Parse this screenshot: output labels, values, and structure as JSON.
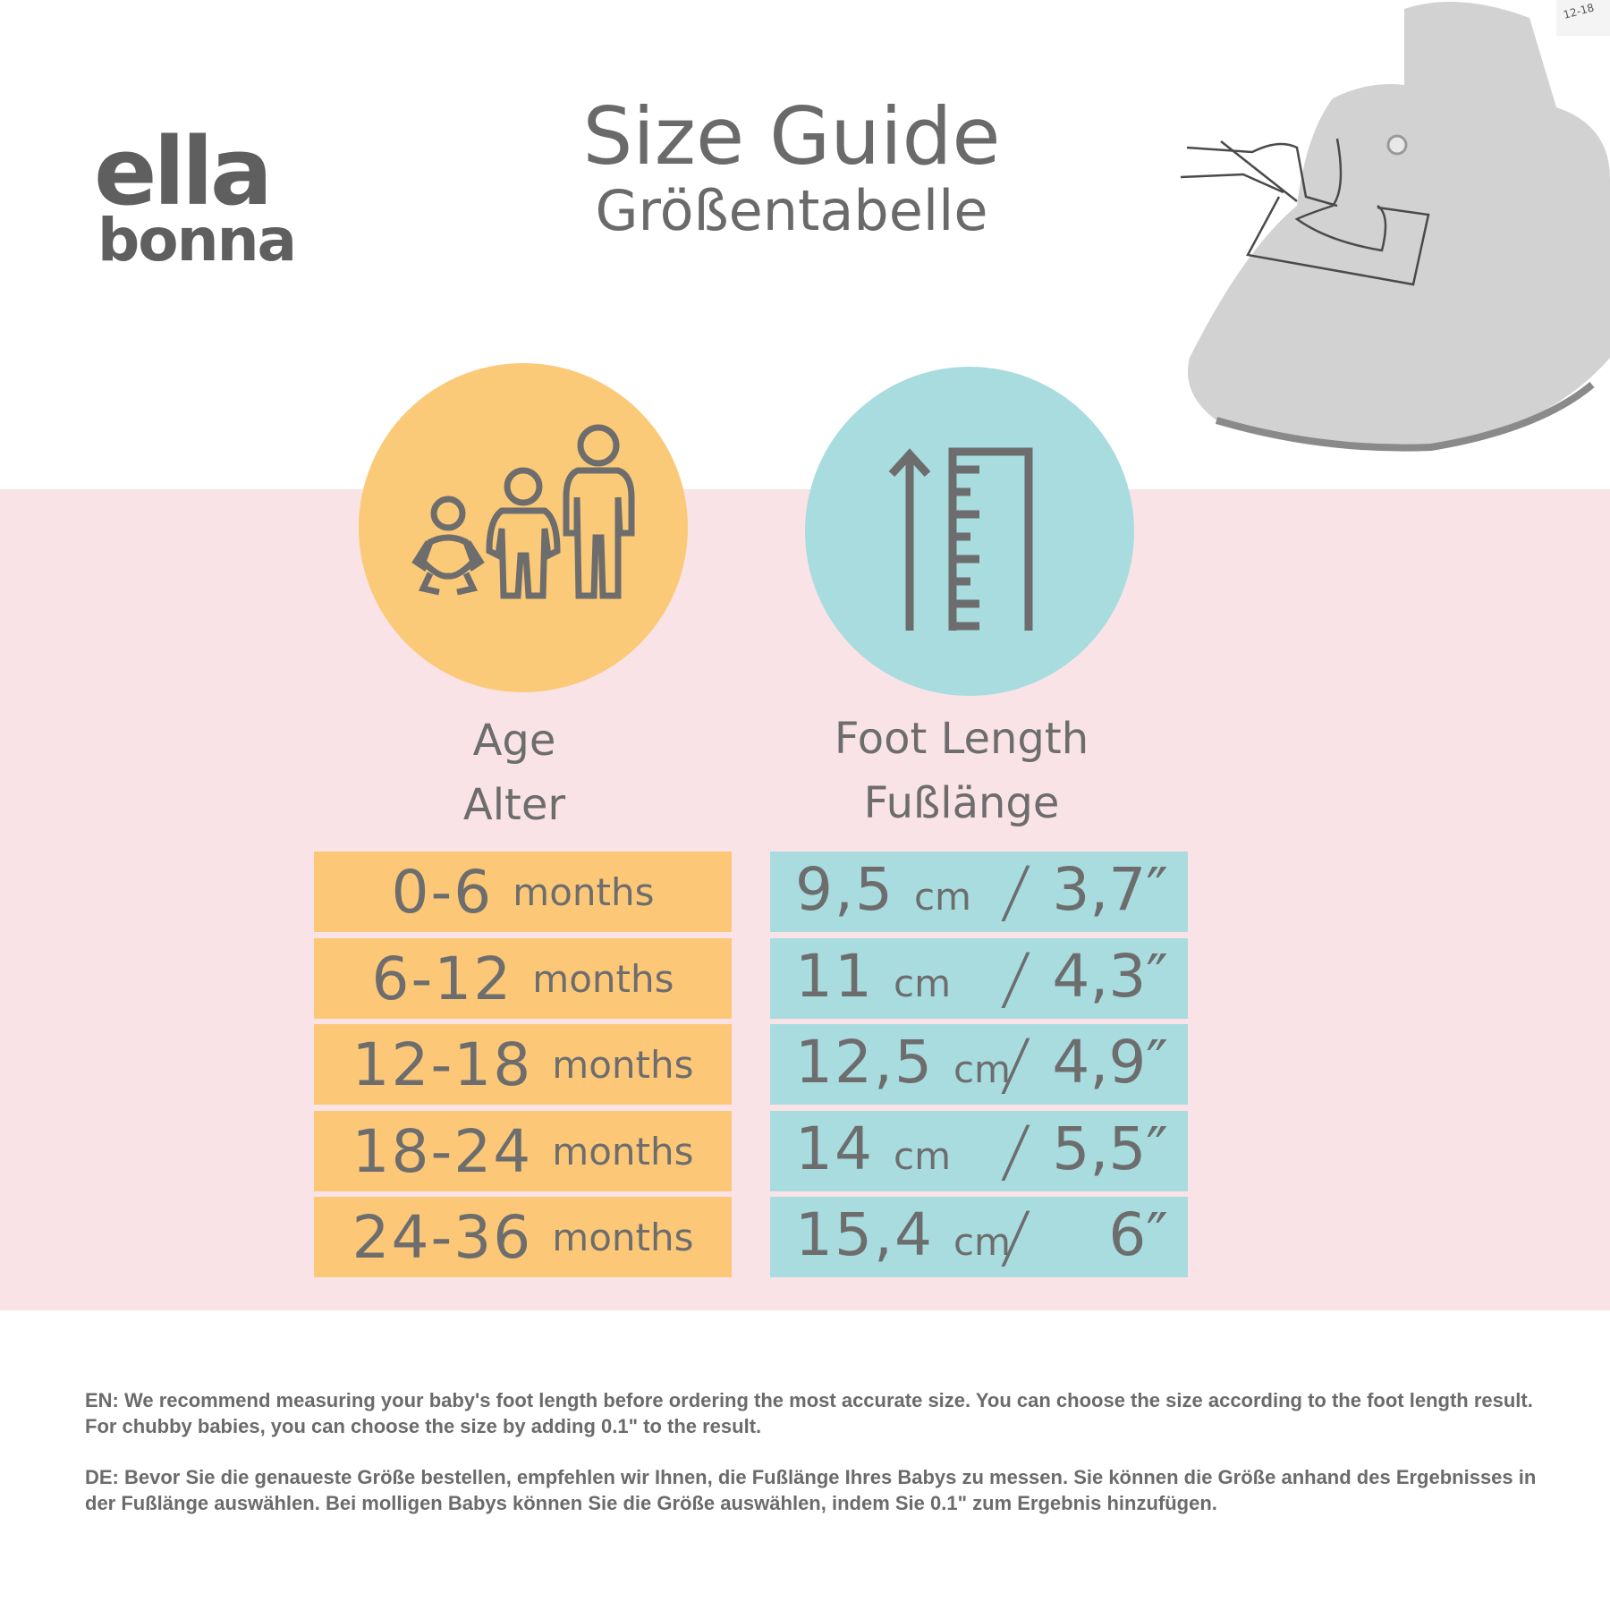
{
  "brand": {
    "line1": "ella",
    "line2": "bonna"
  },
  "title": {
    "main": "Size Guide",
    "sub": "Größentabelle"
  },
  "icons": {
    "age": "family-people-icon",
    "foot": "ruler-arrow-icon",
    "boot": "baby-bootie-measuring-illustration"
  },
  "colors": {
    "band": "#f9e3e7",
    "age": "#fbca78",
    "foot": "#a8dcdf",
    "text": "#6d6d6d"
  },
  "columns": {
    "age": {
      "en": "Age",
      "de": "Alter"
    },
    "foot": {
      "en": "Foot Length",
      "de": "Fußlänge"
    }
  },
  "rows": [
    {
      "age": "0-6",
      "unit": "months",
      "cm": "9,5",
      "cm_unit": "cm",
      "inch": "3,7″"
    },
    {
      "age": "6-12",
      "unit": "months",
      "cm": "11",
      "cm_unit": "cm",
      "inch": "4,3″"
    },
    {
      "age": "12-18",
      "unit": "months",
      "cm": "12,5",
      "cm_unit": "cm",
      "inch": "4,9″"
    },
    {
      "age": "18-24",
      "unit": "months",
      "cm": "14",
      "cm_unit": "cm",
      "inch": "5,5″"
    },
    {
      "age": "24-36",
      "unit": "months",
      "cm": "15,4",
      "cm_unit": "cm",
      "inch": "6″"
    }
  ],
  "separator": "/",
  "boot_label": "12-18",
  "notes": {
    "en": "EN: We recommend measuring your baby's foot length before ordering the most accurate size. You can choose the size according to the foot length result. For chubby babies, you can choose the size by adding 0.1\"  to the result.",
    "de": "DE: Bevor Sie die genaueste Größe bestellen, empfehlen wir Ihnen, die Fußlänge Ihres Babys zu messen. Sie können die Größe anhand des Ergebnisses in der Fußlänge auswählen. Bei molligen Babys können Sie die Größe auswählen, indem Sie 0.1\" zum Ergebnis hinzufügen."
  }
}
